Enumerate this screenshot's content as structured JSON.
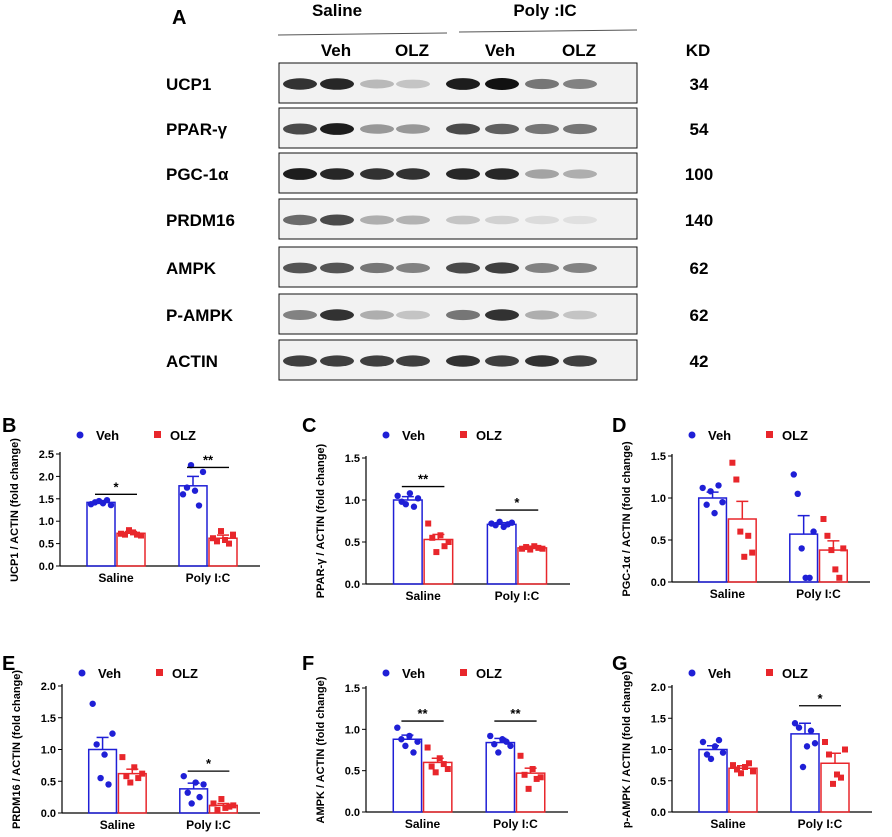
{
  "panel_a": {
    "letter": "A",
    "groups": [
      "Saline",
      "Poly :IC"
    ],
    "treatments": [
      "Veh",
      "OLZ",
      "Veh",
      "OLZ"
    ],
    "kd_header": "KD",
    "blots": [
      {
        "label": "UCP1",
        "kd": "34",
        "bands": [
          0.85,
          0.9,
          0.25,
          0.2,
          0.95,
          1.0,
          0.55,
          0.5
        ]
      },
      {
        "label": "PPAR-γ",
        "kd": "54",
        "bands": [
          0.75,
          0.95,
          0.4,
          0.4,
          0.75,
          0.65,
          0.55,
          0.55
        ]
      },
      {
        "label": "PGC-1α",
        "kd": "100",
        "bands": [
          0.95,
          0.9,
          0.85,
          0.85,
          0.9,
          0.9,
          0.35,
          0.3
        ]
      },
      {
        "label": "PRDM16",
        "kd": "140",
        "bands": [
          0.6,
          0.75,
          0.3,
          0.28,
          0.2,
          0.15,
          0.1,
          0.08
        ]
      },
      {
        "label": "AMPK",
        "kd": "62",
        "bands": [
          0.7,
          0.7,
          0.55,
          0.5,
          0.75,
          0.8,
          0.5,
          0.5
        ]
      },
      {
        "label": "P-AMPK",
        "kd": "62",
        "bands": [
          0.5,
          0.85,
          0.3,
          0.2,
          0.55,
          0.85,
          0.3,
          0.2
        ]
      },
      {
        "label": "ACTIN",
        "kd": "42",
        "bands": [
          0.8,
          0.8,
          0.8,
          0.8,
          0.85,
          0.8,
          0.85,
          0.8
        ]
      }
    ]
  },
  "legend": {
    "veh": "Veh",
    "olz": "OLZ"
  },
  "colors": {
    "veh": "#1f1fd6",
    "olz": "#e8262b"
  },
  "chart_data": [
    {
      "type": "bar",
      "letter": "B",
      "ylabel": "UCP1 / ACTIN (fold change)",
      "categories": [
        "Saline",
        "Poly I:C"
      ],
      "ylim": [
        0,
        2.5
      ],
      "yticks": [
        0,
        0.5,
        1.0,
        1.5,
        2.0,
        2.5
      ],
      "yticklabels": [
        "0.0",
        "0.5",
        "1.0",
        "1.5",
        "2.0",
        "2.5"
      ],
      "series": [
        {
          "name": "Veh",
          "values": [
            1.42,
            1.79
          ],
          "sem": [
            0.04,
            0.21
          ],
          "points": [
            [
              1.38,
              1.42,
              1.45,
              1.4,
              1.47,
              1.36
            ],
            [
              1.6,
              1.75,
              2.25,
              1.68,
              1.35,
              2.1
            ]
          ]
        },
        {
          "name": "OLZ",
          "values": [
            0.73,
            0.62
          ],
          "sem": [
            0.04,
            0.07
          ],
          "points": [
            [
              0.72,
              0.7,
              0.8,
              0.75,
              0.7,
              0.68
            ],
            [
              0.62,
              0.55,
              0.78,
              0.58,
              0.5,
              0.7
            ]
          ]
        }
      ],
      "sig": [
        {
          "category": 0,
          "text": "*",
          "y": 1.6
        },
        {
          "category": 1,
          "text": "**",
          "y": 2.2
        }
      ]
    },
    {
      "type": "bar",
      "letter": "C",
      "ylabel": "PPAR-γ / ACTIN (fold change)",
      "categories": [
        "Saline",
        "Poly I:C"
      ],
      "ylim": [
        0,
        1.5
      ],
      "yticks": [
        0,
        0.5,
        1.0,
        1.5
      ],
      "yticklabels": [
        "0.0",
        "0.5",
        "1.0",
        "1.5"
      ],
      "series": [
        {
          "name": "Veh",
          "values": [
            1.0,
            0.71
          ],
          "sem": [
            0.04,
            0.02
          ],
          "points": [
            [
              1.05,
              0.98,
              0.95,
              1.08,
              0.92,
              1.02
            ],
            [
              0.72,
              0.7,
              0.74,
              0.68,
              0.71,
              0.73
            ]
          ]
        },
        {
          "name": "OLZ",
          "values": [
            0.53,
            0.43
          ],
          "sem": [
            0.06,
            0.02
          ],
          "points": [
            [
              0.72,
              0.55,
              0.38,
              0.58,
              0.45,
              0.5
            ],
            [
              0.42,
              0.44,
              0.41,
              0.45,
              0.43,
              0.42
            ]
          ]
        }
      ],
      "sig": [
        {
          "category": 0,
          "text": "**",
          "y": 1.16
        },
        {
          "category": 1,
          "text": "*",
          "y": 0.88
        }
      ]
    },
    {
      "type": "bar",
      "letter": "D",
      "ylabel": "PGC-1α / ACTIN (fold change)",
      "categories": [
        "Saline",
        "Poly I:C"
      ],
      "ylim": [
        0,
        1.5
      ],
      "yticks": [
        0,
        0.5,
        1.0,
        1.5
      ],
      "yticklabels": [
        "0.0",
        "0.5",
        "1.0",
        "1.5"
      ],
      "series": [
        {
          "name": "Veh",
          "values": [
            1.0,
            0.57
          ],
          "sem": [
            0.07,
            0.22
          ],
          "points": [
            [
              1.12,
              0.92,
              1.08,
              0.82,
              1.15,
              0.95
            ],
            [
              1.28,
              1.05,
              0.4,
              0.05,
              0.05,
              0.6
            ]
          ]
        },
        {
          "name": "OLZ",
          "values": [
            0.75,
            0.38
          ],
          "sem": [
            0.21,
            0.11
          ],
          "points": [
            [
              1.42,
              1.22,
              0.6,
              0.3,
              0.55,
              0.35
            ],
            [
              0.75,
              0.55,
              0.38,
              0.15,
              0.05,
              0.4
            ]
          ]
        }
      ],
      "sig": []
    },
    {
      "type": "bar",
      "letter": "E",
      "ylabel": "PRDM16 / ACTIN (fold change)",
      "categories": [
        "Saline",
        "Poly I:C"
      ],
      "ylim": [
        0,
        2.0
      ],
      "yticks": [
        0,
        0.5,
        1.0,
        1.5,
        2.0
      ],
      "yticklabels": [
        "0.0",
        "0.5",
        "1.0",
        "1.5",
        "2.0"
      ],
      "series": [
        {
          "name": "Veh",
          "values": [
            1.0,
            0.38
          ],
          "sem": [
            0.19,
            0.09
          ],
          "points": [
            [
              1.72,
              1.08,
              0.55,
              0.92,
              0.45,
              1.25
            ],
            [
              0.58,
              0.32,
              0.15,
              0.48,
              0.25,
              0.45
            ]
          ]
        },
        {
          "name": "OLZ",
          "values": [
            0.62,
            0.12
          ],
          "sem": [
            0.07,
            0.03
          ],
          "points": [
            [
              0.88,
              0.58,
              0.48,
              0.72,
              0.55,
              0.62
            ],
            [
              0.15,
              0.05,
              0.22,
              0.08,
              0.1,
              0.12
            ]
          ]
        }
      ],
      "sig": [
        {
          "category": 1,
          "text": "*",
          "y": 0.66
        }
      ]
    },
    {
      "type": "bar",
      "letter": "F",
      "ylabel": "AMPK / ACTIN (fold change)",
      "categories": [
        "Saline",
        "Poly I:C"
      ],
      "ylim": [
        0,
        1.5
      ],
      "yticks": [
        0,
        0.5,
        1.0,
        1.5
      ],
      "yticklabels": [
        "0.0",
        "0.5",
        "1.0",
        "1.5"
      ],
      "series": [
        {
          "name": "Veh",
          "values": [
            0.88,
            0.84
          ],
          "sem": [
            0.05,
            0.05
          ],
          "points": [
            [
              1.02,
              0.88,
              0.8,
              0.92,
              0.72,
              0.85
            ],
            [
              0.92,
              0.82,
              0.72,
              0.88,
              0.85,
              0.8
            ]
          ]
        },
        {
          "name": "OLZ",
          "values": [
            0.6,
            0.47
          ],
          "sem": [
            0.05,
            0.06
          ],
          "points": [
            [
              0.78,
              0.55,
              0.48,
              0.65,
              0.58,
              0.52
            ],
            [
              0.68,
              0.45,
              0.28,
              0.52,
              0.4,
              0.42
            ]
          ]
        }
      ],
      "sig": [
        {
          "category": 0,
          "text": "**",
          "y": 1.1
        },
        {
          "category": 1,
          "text": "**",
          "y": 1.1
        }
      ]
    },
    {
      "type": "bar",
      "letter": "G",
      "ylabel": "p-AMPK / ACTIN (fold change)",
      "categories": [
        "Saline",
        "Poly I:C"
      ],
      "ylim": [
        0,
        2.0
      ],
      "yticks": [
        0,
        0.5,
        1.0,
        1.5,
        2.0
      ],
      "yticklabels": [
        "0.0",
        "0.5",
        "1.0",
        "1.5",
        "2.0"
      ],
      "series": [
        {
          "name": "Veh",
          "values": [
            1.0,
            1.25
          ],
          "sem": [
            0.06,
            0.17
          ],
          "points": [
            [
              1.12,
              0.92,
              0.85,
              1.05,
              1.15,
              0.95
            ],
            [
              1.42,
              1.35,
              0.72,
              1.05,
              1.3,
              1.1
            ]
          ]
        },
        {
          "name": "OLZ",
          "values": [
            0.7,
            0.78
          ],
          "sem": [
            0.04,
            0.16
          ],
          "points": [
            [
              0.75,
              0.68,
              0.62,
              0.72,
              0.78,
              0.65
            ],
            [
              1.12,
              0.92,
              0.45,
              0.6,
              0.55,
              1.0
            ]
          ]
        }
      ],
      "sig": [
        {
          "category": 1,
          "text": "*",
          "y": 1.7
        }
      ]
    }
  ]
}
